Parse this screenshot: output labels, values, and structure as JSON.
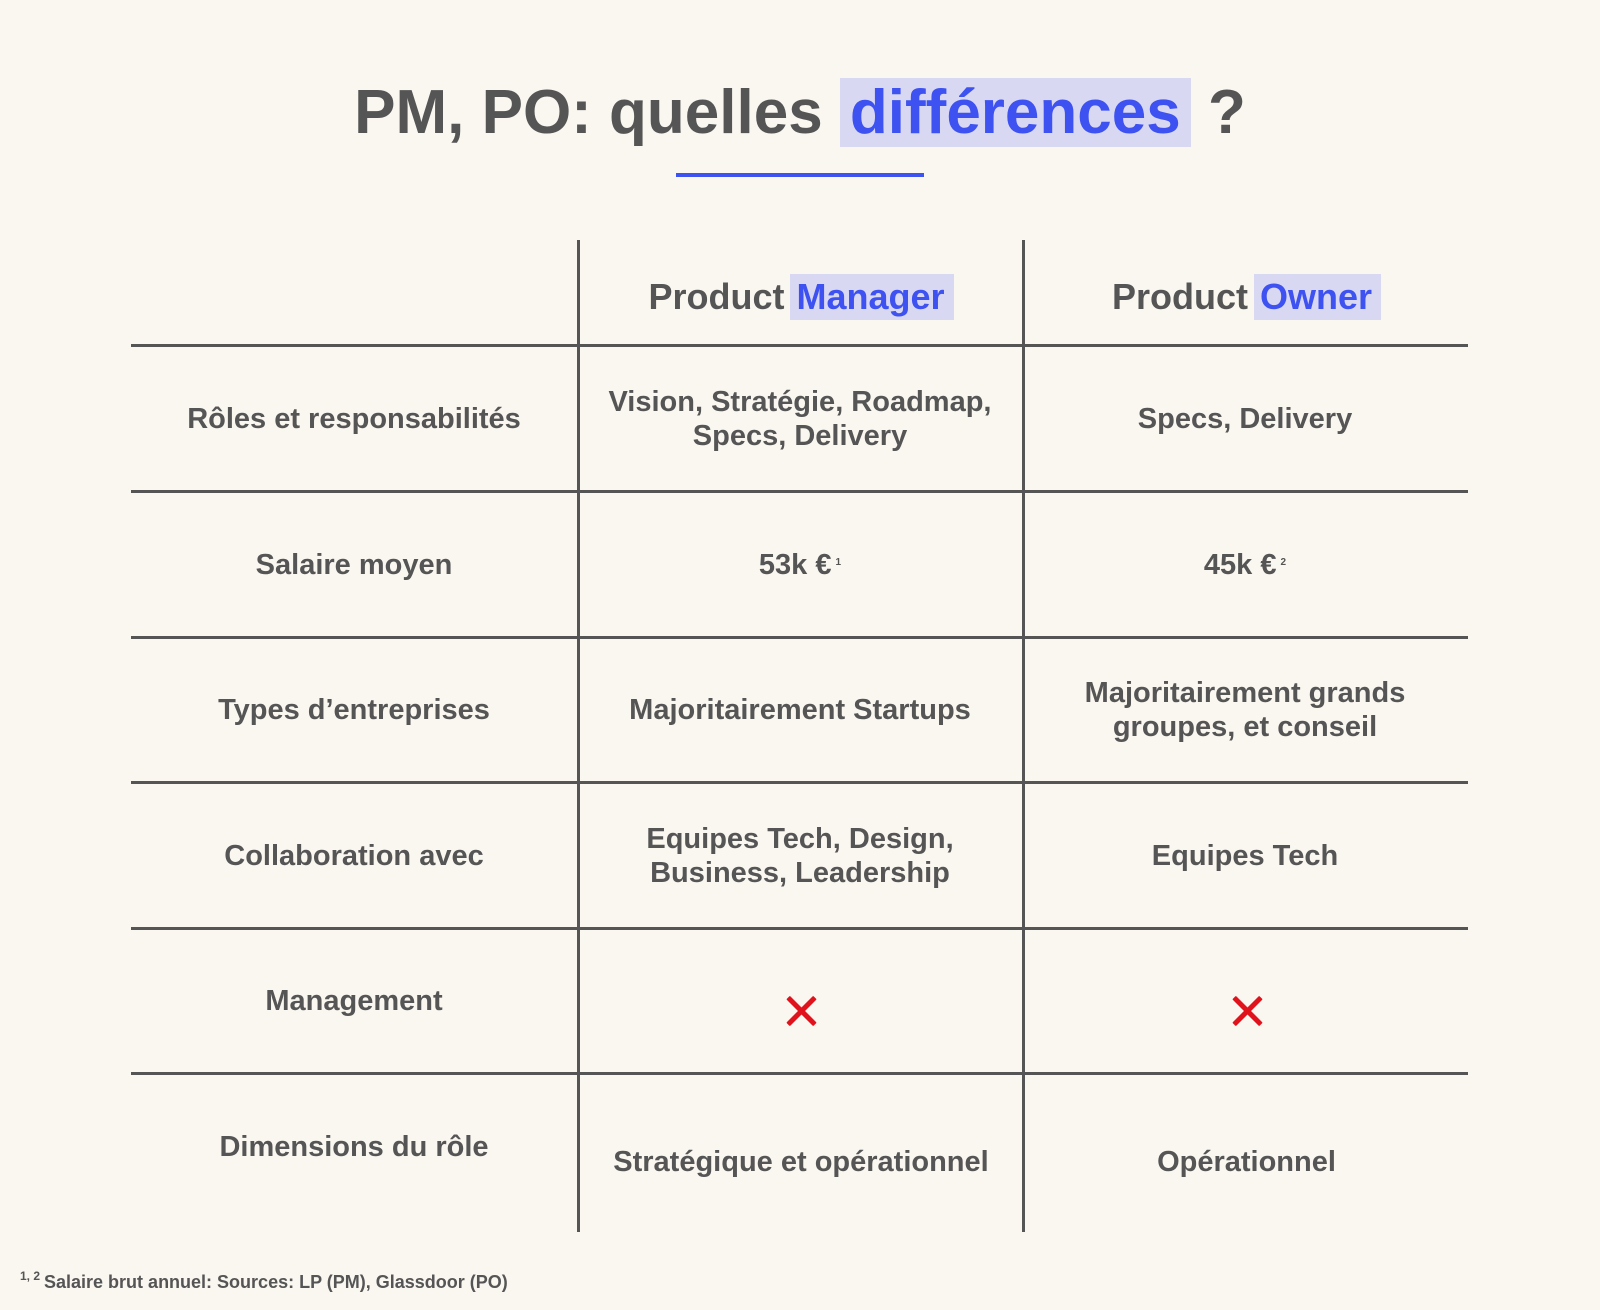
{
  "title": {
    "prefix": "PM, PO: quelles",
    "highlight": "différences",
    "suffix": "?"
  },
  "table": {
    "columns": [
      {
        "prefix": "Product",
        "highlight": "Manager"
      },
      {
        "prefix": "Product",
        "highlight": "Owner"
      }
    ],
    "rows": [
      {
        "label": "Rôles et responsabilités",
        "pm": "Vision, Stratégie, Roadmap, Specs, Delivery",
        "po": "Specs, Delivery"
      },
      {
        "label": "Salaire moyen",
        "pm": "53k €",
        "pm_sup": "1",
        "po": "45k €",
        "po_sup": "2"
      },
      {
        "label": "Types d’entreprises",
        "pm": "Majoritairement Startups",
        "po": "Majoritairement grands groupes, et conseil"
      },
      {
        "label": "Collaboration avec",
        "pm": "Equipes Tech, Design, Business, Leadership",
        "po": "Equipes Tech"
      },
      {
        "label": "Management",
        "pm_icon": "cross-icon",
        "po_icon": "cross-icon"
      },
      {
        "label": "Dimensions du rôle",
        "pm": "Stratégique et opérationnel",
        "po": "Opérationnel"
      }
    ]
  },
  "footnote": {
    "marks": "1, 2",
    "text": "Salaire brut annuel: Sources: LP (PM), Glassdoor (PO)"
  },
  "colors": {
    "background": "#faf6f0",
    "text": "#555555",
    "accent": "#3d52f0",
    "highlight_bg": "#d9d8f2",
    "cross": "#e0131c"
  }
}
